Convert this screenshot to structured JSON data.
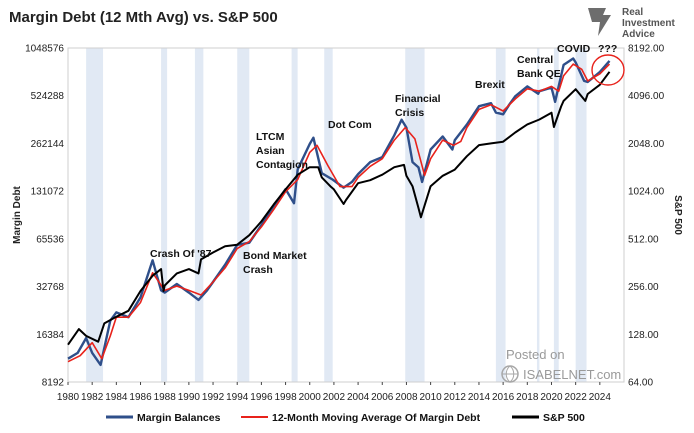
{
  "chart_data": {
    "type": "line",
    "title": "Margin Debt (12 Mth Avg) vs. S&P 500",
    "ylabel_left": "Margin Debt",
    "ylabel_right": "S&P 500",
    "y_scale": "log2",
    "ylim_left": [
      8192,
      1048576
    ],
    "ylim_right": [
      64,
      8192
    ],
    "xlim": [
      1980,
      2026
    ],
    "x_ticks": [
      "1980",
      "1982",
      "1984",
      "1986",
      "1988",
      "1990",
      "1992",
      "1994",
      "1996",
      "1998",
      "2000",
      "2002",
      "2004",
      "2006",
      "2008",
      "2010",
      "2012",
      "2014",
      "2016",
      "2018",
      "2020",
      "2022",
      "2024"
    ],
    "y_ticks_left": [
      "8192",
      "16384",
      "32768",
      "65536",
      "131072",
      "262144",
      "524288",
      "1048576"
    ],
    "y_ticks_right": [
      "64.00",
      "128.00",
      "256.00",
      "512.00",
      "1024.00",
      "2048.00",
      "4096.00",
      "8192.00"
    ],
    "recession_shading": [
      [
        1981.5,
        1982.9
      ],
      [
        1987.7,
        1988.2
      ],
      [
        1990.5,
        1991.2
      ],
      [
        1994.0,
        1995.0
      ],
      [
        1998.5,
        1999.0
      ],
      [
        2001.2,
        2001.9
      ],
      [
        2007.9,
        2009.5
      ],
      [
        2015.4,
        2016.2
      ],
      [
        2018.8,
        2019.0
      ],
      [
        2020.2,
        2020.6
      ],
      [
        2022.0,
        2022.9
      ]
    ],
    "series": [
      {
        "name": "Margin Balances",
        "color": "#2f4f8a",
        "x": [
          1980,
          1980.8,
          1981.5,
          1982,
          1982.7,
          1983.5,
          1984,
          1985,
          1986,
          1987,
          1987.7,
          1988,
          1989,
          1990,
          1990.8,
          1991.5,
          1992,
          1993,
          1994,
          1995,
          1996,
          1997,
          1998,
          1998.7,
          1999,
          2000,
          2000.3,
          2001,
          2001.9,
          2002.8,
          2003.5,
          2004,
          2005,
          2006,
          2007,
          2007.6,
          2008,
          2008.5,
          2009,
          2009.3,
          2010,
          2011,
          2011.8,
          2012,
          2013,
          2014,
          2015,
          2015.4,
          2016,
          2016.5,
          2017,
          2018,
          2018.9,
          2019,
          2020,
          2020.3,
          2020.8,
          2021,
          2021.8,
          2022,
          2022.7,
          2023,
          2024,
          2024.8
        ],
        "y": [
          11500,
          12500,
          15500,
          12500,
          10500,
          20000,
          22500,
          21000,
          28000,
          48000,
          31000,
          30000,
          34000,
          30000,
          27000,
          31000,
          35000,
          45000,
          60000,
          62000,
          80000,
          105000,
          135000,
          110000,
          180000,
          260000,
          285000,
          170000,
          155000,
          138000,
          150000,
          168000,
          200000,
          215000,
          295000,
          370000,
          330000,
          200000,
          185000,
          150000,
          240000,
          290000,
          240000,
          275000,
          345000,
          450000,
          470000,
          410000,
          400000,
          460000,
          520000,
          600000,
          540000,
          560000,
          590000,
          480000,
          700000,
          820000,
          900000,
          850000,
          650000,
          640000,
          740000,
          870000
        ]
      },
      {
        "name": "12-Month Moving Average Of Margin Debt",
        "color": "#e8221b",
        "x": [
          1980,
          1981,
          1982,
          1982.8,
          1983.5,
          1984,
          1985,
          1986,
          1987,
          1988,
          1989,
          1990,
          1991,
          1992,
          1993,
          1994,
          1995,
          1996,
          1997,
          1998,
          1999,
          2000,
          2000.6,
          2001.5,
          2002.5,
          2003.5,
          2004,
          2005,
          2006,
          2007,
          2007.9,
          2008.7,
          2009.5,
          2010,
          2011,
          2011.9,
          2012.5,
          2013,
          2014,
          2015,
          2016,
          2017,
          2018,
          2019,
          2020,
          2020.6,
          2021,
          2021.8,
          2022.5,
          2023,
          2024,
          2024.8
        ],
        "y": [
          11000,
          12000,
          14500,
          11500,
          16000,
          21000,
          21000,
          26000,
          40000,
          31000,
          33000,
          31000,
          29000,
          35000,
          43000,
          57000,
          63000,
          78000,
          100000,
          130000,
          155000,
          230000,
          255000,
          190000,
          140000,
          140000,
          160000,
          188000,
          210000,
          275000,
          330000,
          280000,
          165000,
          210000,
          275000,
          255000,
          270000,
          330000,
          430000,
          460000,
          420000,
          500000,
          580000,
          560000,
          600000,
          560000,
          700000,
          830000,
          770000,
          650000,
          720000,
          830000
        ]
      },
      {
        "name": "S&P 500",
        "color": "#000000",
        "x": [
          1980,
          1980.9,
          1981.5,
          1982.5,
          1983,
          1984,
          1985,
          1986,
          1987,
          1987.7,
          1987.9,
          1988,
          1989,
          1990,
          1990.8,
          1991,
          1992,
          1993,
          1994,
          1995,
          1996,
          1997,
          1998,
          1999,
          2000,
          2000.7,
          2001,
          2001.7,
          2002,
          2002.8,
          2003,
          2004,
          2005,
          2006,
          2007,
          2007.8,
          2008,
          2008.5,
          2009,
          2009.2,
          2010,
          2011,
          2012,
          2013,
          2014,
          2015,
          2016,
          2017,
          2018,
          2019,
          2020,
          2020.2,
          2020.8,
          2021,
          2022,
          2022.8,
          2023,
          2024,
          2024.8
        ],
        "y": [
          110,
          138,
          125,
          115,
          150,
          165,
          180,
          240,
          300,
          330,
          240,
          260,
          310,
          330,
          310,
          380,
          420,
          460,
          470,
          540,
          660,
          840,
          1050,
          1300,
          1450,
          1450,
          1250,
          1100,
          1050,
          850,
          900,
          1150,
          1200,
          1300,
          1450,
          1500,
          1280,
          1100,
          800,
          700,
          1100,
          1280,
          1400,
          1700,
          2000,
          2050,
          2100,
          2400,
          2700,
          2900,
          3200,
          2600,
          3500,
          3800,
          4500,
          3800,
          4200,
          4800,
          5800
        ]
      }
    ],
    "annotations": [
      {
        "text": "Crash Of '87"
      },
      {
        "text": "Bond Market"
      },
      {
        "text": "Crash"
      },
      {
        "text": "LTCM"
      },
      {
        "text": "Asian"
      },
      {
        "text": "Contagion"
      },
      {
        "text": "Dot Com"
      },
      {
        "text": "Financial"
      },
      {
        "text": "Crisis"
      },
      {
        "text": "Brexit"
      },
      {
        "text": "Central"
      },
      {
        "text": "Bank QE"
      },
      {
        "text": "COVID"
      },
      {
        "text": "???"
      }
    ],
    "legend_position": "bottom"
  },
  "branding": {
    "logo_line1": "Real",
    "logo_line2": "Investment",
    "logo_line3": "Advice",
    "watermark_line1": "Posted on",
    "watermark_line2": "ISABELNET.com"
  }
}
